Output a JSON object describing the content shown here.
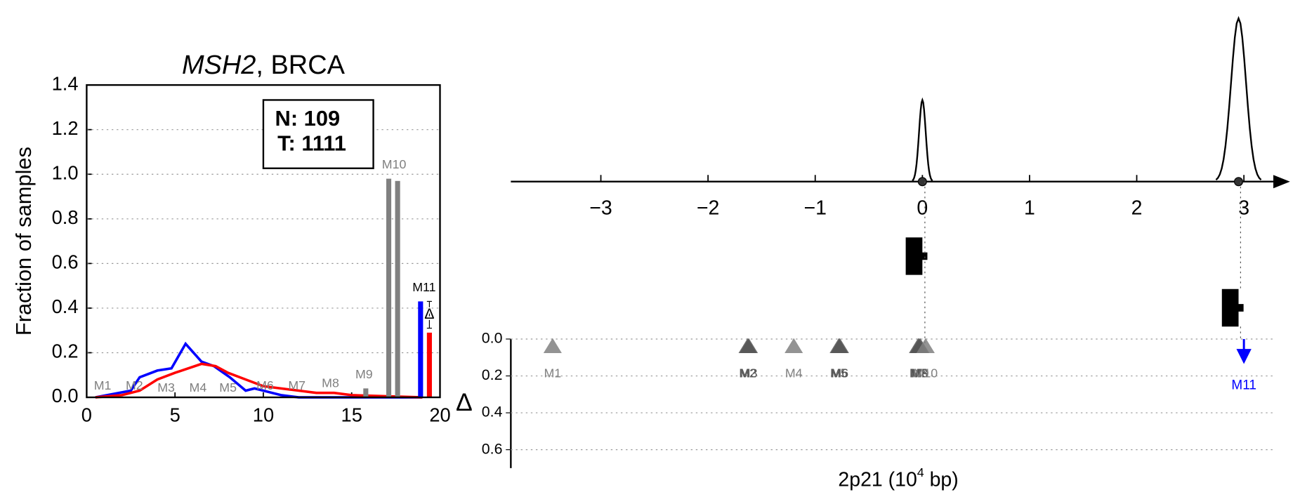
{
  "chart_data": [
    {
      "type": "line-bar",
      "title": [
        "MSH2",
        ", BRCA"
      ],
      "ylabel": "Fraction of samples",
      "xlim": [
        0,
        20
      ],
      "ylim": [
        0,
        1.4
      ],
      "xticks": [
        0,
        5,
        10,
        15,
        20
      ],
      "yticks": [
        {
          "value": 0,
          "label": "0.0"
        },
        {
          "value": 0.2,
          "label": "0.2"
        },
        {
          "value": 0.4,
          "label": "0.4"
        },
        {
          "value": 0.6,
          "label": "0.6"
        },
        {
          "value": 0.8,
          "label": "0.8"
        },
        {
          "value": 1.0,
          "label": "1.0"
        },
        {
          "value": 1.2,
          "label": "1.2"
        },
        {
          "value": 1.4,
          "label": "1.4"
        }
      ],
      "grid": true,
      "legend_box": [
        "N: 109",
        "T: 1111"
      ],
      "series": [
        {
          "color": "#0000ff",
          "x": [
            0.5,
            2.5,
            3,
            4,
            4.8,
            5.6,
            6.5,
            7.2,
            8.1,
            9,
            9.5,
            10,
            11,
            12,
            19
          ],
          "values": [
            0,
            0.03,
            0.09,
            0.12,
            0.13,
            0.24,
            0.16,
            0.14,
            0.09,
            0.03,
            0.04,
            0.03,
            0.01,
            0,
            0
          ]
        },
        {
          "color": "#ff0000",
          "x": [
            0.5,
            2,
            3,
            4,
            5,
            6.5,
            7.3,
            8,
            9,
            10,
            11,
            12,
            13,
            14,
            15,
            19
          ],
          "values": [
            0,
            0.01,
            0.03,
            0.08,
            0.11,
            0.15,
            0.14,
            0.11,
            0.08,
            0.05,
            0.04,
            0.03,
            0.02,
            0.02,
            0.01,
            0
          ]
        }
      ],
      "bars": {
        "x": [
          15.8,
          17.1,
          17.6,
          18.9,
          19.4
        ],
        "values": [
          0.04,
          0.98,
          0.97,
          0.43,
          0.29
        ],
        "colors": [
          "#808080",
          "#808080",
          "#808080",
          "#0000ff",
          "#ff0000"
        ]
      },
      "motif_labels": {
        "labels": [
          "M1",
          "M2",
          "M3",
          "M4",
          "M5",
          "M6",
          "M7",
          "M8",
          "M9",
          "M10",
          "M11"
        ],
        "x": [
          0.9,
          2.7,
          4.5,
          6.3,
          8.0,
          10.1,
          11.9,
          13.8,
          15.7,
          17.4,
          19.1
        ],
        "y": [
          0.05,
          0.05,
          0.04,
          0.04,
          0.04,
          0.05,
          0.05,
          0.06,
          0.1,
          1.04,
          0.49
        ],
        "colors": [
          "#808080",
          "#808080",
          "#808080",
          "#808080",
          "#808080",
          "#808080",
          "#808080",
          "#808080",
          "#808080",
          "#808080",
          "#000000"
        ]
      },
      "delta_marker": {
        "label": "Δ",
        "x": 19.4,
        "y": 0.37,
        "low": 0.31,
        "high": 0.43
      }
    },
    {
      "type": "density",
      "xlim": [
        -3.84,
        3.43
      ],
      "xticks": [
        {
          "value": -3,
          "label": "−3"
        },
        {
          "value": -2,
          "label": "−2"
        },
        {
          "value": -1,
          "label": "−1"
        },
        0,
        1,
        2,
        3
      ],
      "peaks": {
        "x": [
          0,
          2.95
        ],
        "values": [
          0.5,
          1
        ]
      }
    },
    {
      "type": "scatter",
      "ylabel": "Δ",
      "xlabel": [
        "2p21 (10",
        "4",
        " bp)"
      ],
      "xlim": [
        -3.84,
        3.43
      ],
      "ylim": [
        0,
        0.7
      ],
      "y_reversed": true,
      "yticks": [
        {
          "value": 0,
          "label": "0.0"
        },
        {
          "value": 0.2,
          "label": "0.2"
        },
        {
          "value": 0.4,
          "label": "0.4"
        },
        {
          "value": 0.6,
          "label": "0.6"
        }
      ],
      "grid": true,
      "points": {
        "labels": [
          "M1",
          "M2",
          "M3",
          "M4",
          "M5",
          "M6",
          "M7",
          "M8",
          "M9",
          "M10"
        ],
        "x": [
          -3.45,
          -1.63,
          -1.62,
          -1.2,
          -0.78,
          -0.77,
          -0.04,
          -0.03,
          -0.02,
          0.03
        ],
        "values": [
          0.04,
          0.04,
          0.04,
          0.04,
          0.04,
          0.04,
          0.04,
          0.04,
          0.04,
          0.04
        ],
        "colors": [
          "#808080",
          "#555555",
          "#555555",
          "#808080",
          "#555555",
          "#555555",
          "#555555",
          "#555555",
          "#555555",
          "#808080"
        ]
      },
      "arrows": {
        "labels": [
          "M11"
        ],
        "x": [
          3.0
        ],
        "values": [
          0.135
        ],
        "color": "#0000ff"
      }
    }
  ]
}
